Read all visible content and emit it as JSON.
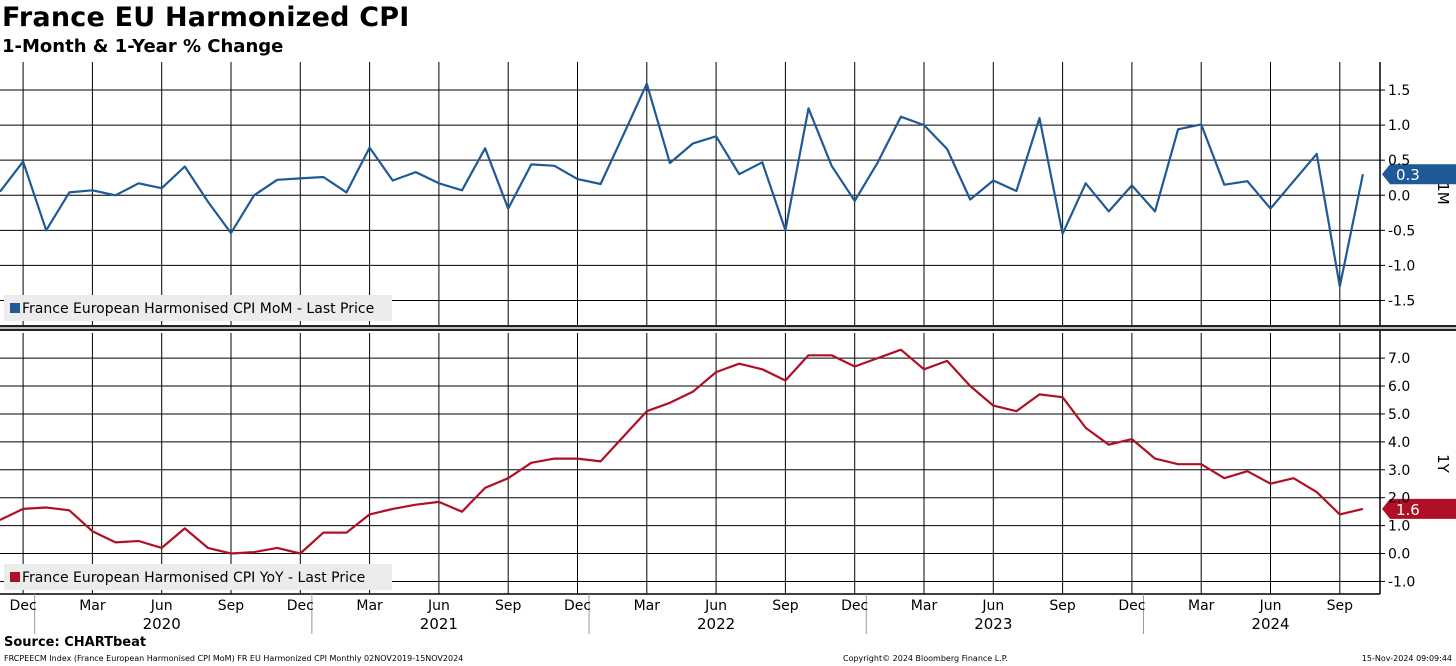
{
  "header": {
    "title": "France EU Harmonized CPI",
    "subtitle": "1-Month & 1-Year % Change"
  },
  "footer": {
    "source": "Source: CHARTbeat",
    "ticker_info": "FRCPEECM Index (France European Harmonised CPI MoM) FR EU Harmonized CPI  Monthly 02NOV2019-15NOV2024",
    "copyright": "Copyright© 2024 Bloomberg Finance L.P.",
    "timestamp": "15-Nov-2024 09:09:44"
  },
  "colors": {
    "mom": "#1f5a96",
    "yoy": "#b01025",
    "grid": "#000000"
  },
  "chart_data": [
    {
      "type": "line",
      "panel_label": "1M",
      "legend": "France European Harmonised CPI MoM - Last Price",
      "legend_position": "bottom-left",
      "last_value_label": "0.3",
      "ylim": [
        -1.85,
        1.9
      ],
      "yticks": [
        "1.5",
        "1.0",
        "0.5",
        "0.0",
        "-0.5",
        "-1.0",
        "-1.5"
      ],
      "grid": true,
      "x": [
        "2019-11",
        "2019-12",
        "2020-01",
        "2020-02",
        "2020-03",
        "2020-04",
        "2020-05",
        "2020-06",
        "2020-07",
        "2020-08",
        "2020-09",
        "2020-10",
        "2020-11",
        "2020-12",
        "2021-01",
        "2021-02",
        "2021-03",
        "2021-04",
        "2021-05",
        "2021-06",
        "2021-07",
        "2021-08",
        "2021-09",
        "2021-10",
        "2021-11",
        "2021-12",
        "2022-01",
        "2022-02",
        "2022-03",
        "2022-04",
        "2022-05",
        "2022-06",
        "2022-07",
        "2022-08",
        "2022-09",
        "2022-10",
        "2022-11",
        "2022-12",
        "2023-01",
        "2023-02",
        "2023-03",
        "2023-04",
        "2023-05",
        "2023-06",
        "2023-07",
        "2023-08",
        "2023-09",
        "2023-10",
        "2023-11",
        "2023-12",
        "2024-01",
        "2024-02",
        "2024-03",
        "2024-04",
        "2024-05",
        "2024-06",
        "2024-07",
        "2024-08",
        "2024-09",
        "2024-10"
      ],
      "values": [
        0.05,
        0.48,
        -0.5,
        0.04,
        0.07,
        0.0,
        0.17,
        0.1,
        0.41,
        -0.09,
        -0.54,
        0.0,
        0.22,
        0.24,
        0.26,
        0.04,
        0.68,
        0.21,
        0.33,
        0.17,
        0.07,
        0.67,
        -0.19,
        0.44,
        0.42,
        0.23,
        0.16,
        0.87,
        1.59,
        0.46,
        0.74,
        0.84,
        0.3,
        0.47,
        -0.5,
        1.24,
        0.42,
        -0.08,
        0.47,
        1.12,
        1.0,
        0.66,
        -0.06,
        0.21,
        0.06,
        1.1,
        -0.55,
        0.17,
        -0.23,
        0.14,
        -0.23,
        0.94,
        1.01,
        0.15,
        0.2,
        -0.19,
        0.2,
        0.59,
        -1.3,
        0.3
      ]
    },
    {
      "type": "line",
      "panel_label": "1Y",
      "legend": "France European Harmonised CPI YoY - Last Price",
      "legend_position": "bottom-left",
      "last_value_label": "1.6",
      "ylim": [
        -1.45,
        7.9
      ],
      "yticks": [
        "7.0",
        "6.0",
        "5.0",
        "4.0",
        "3.0",
        "2.0",
        "1.0",
        "0.0",
        "-1.0"
      ],
      "grid": true,
      "x": [
        "2019-11",
        "2019-12",
        "2020-01",
        "2020-02",
        "2020-03",
        "2020-04",
        "2020-05",
        "2020-06",
        "2020-07",
        "2020-08",
        "2020-09",
        "2020-10",
        "2020-11",
        "2020-12",
        "2021-01",
        "2021-02",
        "2021-03",
        "2021-04",
        "2021-05",
        "2021-06",
        "2021-07",
        "2021-08",
        "2021-09",
        "2021-10",
        "2021-11",
        "2021-12",
        "2022-01",
        "2022-02",
        "2022-03",
        "2022-04",
        "2022-05",
        "2022-06",
        "2022-07",
        "2022-08",
        "2022-09",
        "2022-10",
        "2022-11",
        "2022-12",
        "2023-01",
        "2023-02",
        "2023-03",
        "2023-04",
        "2023-05",
        "2023-06",
        "2023-07",
        "2023-08",
        "2023-09",
        "2023-10",
        "2023-11",
        "2023-12",
        "2024-01",
        "2024-02",
        "2024-03",
        "2024-04",
        "2024-05",
        "2024-06",
        "2024-07",
        "2024-08",
        "2024-09",
        "2024-10"
      ],
      "values": [
        1.2,
        1.6,
        1.65,
        1.55,
        0.8,
        0.4,
        0.45,
        0.2,
        0.9,
        0.2,
        0.0,
        0.05,
        0.2,
        0.0,
        0.75,
        0.75,
        1.4,
        1.6,
        1.75,
        1.85,
        1.5,
        2.35,
        2.7,
        3.25,
        3.4,
        3.4,
        3.3,
        4.2,
        5.1,
        5.4,
        5.8,
        6.5,
        6.8,
        6.6,
        6.2,
        7.1,
        7.1,
        6.7,
        7.0,
        7.3,
        6.6,
        6.9,
        6.0,
        5.3,
        5.1,
        5.7,
        5.6,
        4.5,
        3.9,
        4.1,
        3.4,
        3.2,
        3.2,
        2.7,
        2.95,
        2.5,
        2.7,
        2.2,
        1.4,
        1.6
      ]
    }
  ],
  "x_axis": {
    "ticks": [
      {
        "date": "2019-12",
        "label": "Dec"
      },
      {
        "date": "2020-03",
        "label": "Mar"
      },
      {
        "date": "2020-06",
        "label": "Jun"
      },
      {
        "date": "2020-09",
        "label": "Sep"
      },
      {
        "date": "2020-12",
        "label": "Dec"
      },
      {
        "date": "2021-03",
        "label": "Mar"
      },
      {
        "date": "2021-06",
        "label": "Jun"
      },
      {
        "date": "2021-09",
        "label": "Sep"
      },
      {
        "date": "2021-12",
        "label": "Dec"
      },
      {
        "date": "2022-03",
        "label": "Mar"
      },
      {
        "date": "2022-06",
        "label": "Jun"
      },
      {
        "date": "2022-09",
        "label": "Sep"
      },
      {
        "date": "2022-12",
        "label": "Dec"
      },
      {
        "date": "2023-03",
        "label": "Mar"
      },
      {
        "date": "2023-06",
        "label": "Jun"
      },
      {
        "date": "2023-09",
        "label": "Sep"
      },
      {
        "date": "2023-12",
        "label": "Dec"
      },
      {
        "date": "2024-03",
        "label": "Mar"
      },
      {
        "date": "2024-06",
        "label": "Jun"
      },
      {
        "date": "2024-09",
        "label": "Sep"
      }
    ],
    "years": [
      {
        "year": "2020",
        "center": "2020-06"
      },
      {
        "year": "2021",
        "center": "2021-06"
      },
      {
        "year": "2022",
        "center": "2022-06"
      },
      {
        "year": "2023",
        "center": "2023-06"
      },
      {
        "year": "2024",
        "center": "2024-06"
      }
    ]
  }
}
